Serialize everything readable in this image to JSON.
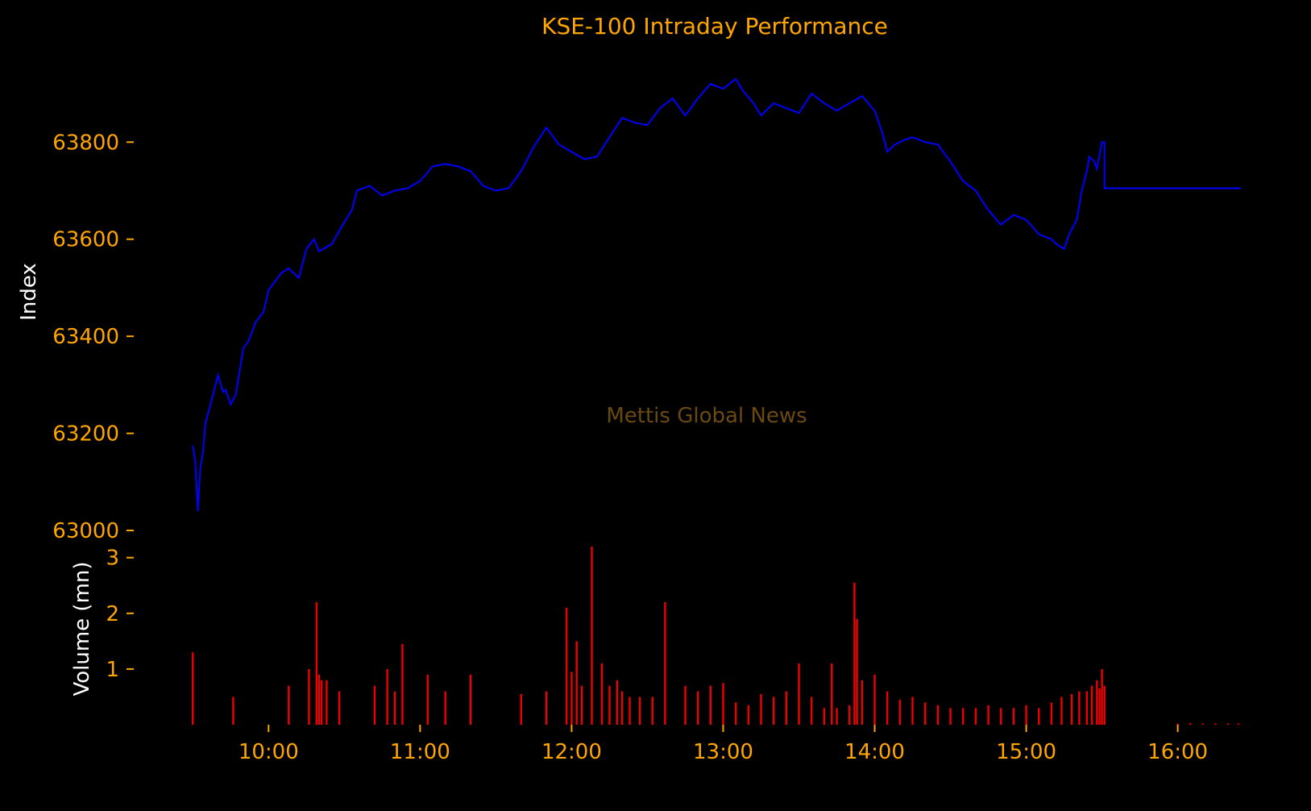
{
  "colors": {
    "background": "#000000",
    "title": "#FFA500",
    "ticks": "#FFA500",
    "axis_label": "#FFFFFF",
    "index_line": "#0000FF",
    "volume_bars": "#EE0000",
    "watermark": "#6B4A12"
  },
  "watermark": "Mettis Global News",
  "chart_data": [
    {
      "type": "line",
      "title": "KSE-100 Intraday Performance",
      "xlabel": "",
      "ylabel": "Index",
      "ylim": [
        63000,
        63950
      ],
      "yticks": [
        63000,
        63200,
        63400,
        63600,
        63800
      ],
      "xlim": [
        "09:28",
        "16:25"
      ],
      "grid": false,
      "series": [
        {
          "x": [
            "09:30",
            "09:31",
            "09:32",
            "09:33",
            "09:34",
            "09:35",
            "09:37",
            "09:39",
            "09:40",
            "09:42",
            "09:43",
            "09:45",
            "09:47",
            "09:50",
            "09:52",
            "09:55",
            "09:58",
            "10:00",
            "10:05",
            "10:08",
            "10:12",
            "10:15",
            "10:18",
            "10:20",
            "10:25",
            "10:30",
            "10:33",
            "10:35",
            "10:40",
            "10:45",
            "10:50",
            "10:55",
            "11:00",
            "11:05",
            "11:10",
            "11:15",
            "11:20",
            "11:25",
            "11:30",
            "11:35",
            "11:40",
            "11:45",
            "11:50",
            "11:55",
            "12:00",
            "12:05",
            "12:10",
            "12:15",
            "12:20",
            "12:25",
            "12:30",
            "12:35",
            "12:40",
            "12:45",
            "12:50",
            "12:55",
            "13:00",
            "13:05",
            "13:08",
            "13:12",
            "13:15",
            "13:20",
            "13:25",
            "13:30",
            "13:35",
            "13:40",
            "13:45",
            "13:50",
            "13:55",
            "14:00",
            "14:03",
            "14:05",
            "14:08",
            "14:12",
            "14:15",
            "14:20",
            "14:25",
            "14:30",
            "14:35",
            "14:40",
            "14:45",
            "14:50",
            "14:55",
            "15:00",
            "15:05",
            "15:10",
            "15:12",
            "15:15",
            "15:17",
            "15:20",
            "15:22",
            "15:24",
            "15:25",
            "15:27",
            "15:28",
            "15:30",
            "15:31",
            "15:31",
            "16:25"
          ],
          "y": [
            63175,
            63140,
            63040,
            63130,
            63160,
            63220,
            63260,
            63300,
            63320,
            63285,
            63290,
            63260,
            63280,
            63375,
            63390,
            63430,
            63450,
            63495,
            63530,
            63540,
            63520,
            63580,
            63600,
            63575,
            63590,
            63635,
            63660,
            63700,
            63710,
            63690,
            63700,
            63705,
            63720,
            63750,
            63755,
            63750,
            63740,
            63710,
            63700,
            63705,
            63740,
            63790,
            63830,
            63795,
            63780,
            63765,
            63770,
            63810,
            63850,
            63840,
            63835,
            63870,
            63890,
            63855,
            63890,
            63920,
            63910,
            63930,
            63905,
            63880,
            63855,
            63880,
            63870,
            63860,
            63900,
            63880,
            63865,
            63880,
            63895,
            63865,
            63820,
            63780,
            63795,
            63805,
            63810,
            63800,
            63795,
            63760,
            63720,
            63700,
            63660,
            63630,
            63650,
            63640,
            63610,
            63600,
            63590,
            63580,
            63610,
            63640,
            63700,
            63740,
            63770,
            63760,
            63745,
            63800,
            63800,
            63705,
            63705
          ]
        }
      ]
    },
    {
      "type": "bar",
      "xlabel": "",
      "ylabel": "Volume (mn)",
      "ylim": [
        0,
        3.3
      ],
      "yticks": [
        1,
        2,
        3
      ],
      "xticks": [
        "10:00",
        "11:00",
        "12:00",
        "13:00",
        "14:00",
        "15:00",
        "16:00"
      ],
      "grid": false,
      "series": [
        {
          "x": [
            "09:30",
            "09:46",
            "10:08",
            "10:16",
            "10:19",
            "10:20",
            "10:21",
            "10:23",
            "10:28",
            "10:42",
            "10:47",
            "10:50",
            "10:53",
            "11:03",
            "11:10",
            "11:20",
            "11:40",
            "11:50",
            "11:58",
            "12:00",
            "12:02",
            "12:04",
            "12:08",
            "12:12",
            "12:15",
            "12:18",
            "12:20",
            "12:23",
            "12:27",
            "12:32",
            "12:37",
            "12:45",
            "12:50",
            "12:55",
            "13:00",
            "13:05",
            "13:10",
            "13:15",
            "13:20",
            "13:25",
            "13:30",
            "13:35",
            "13:40",
            "13:45",
            "13:50",
            "13:55",
            "14:00",
            "14:05",
            "14:10",
            "14:15",
            "14:20",
            "14:25",
            "14:30",
            "14:35",
            "14:40",
            "14:45",
            "14:50",
            "14:55",
            "15:00",
            "15:05",
            "15:10",
            "15:14",
            "15:18",
            "15:21",
            "15:24",
            "15:26",
            "15:28",
            "15:29",
            "15:30",
            "15:31",
            "16:00",
            "16:05",
            "16:10",
            "16:15",
            "16:20",
            "16:24"
          ],
          "y": [
            1.3,
            0.5,
            0.7,
            1.0,
            2.2,
            0.9,
            0.8,
            0.8,
            0.6,
            0.7,
            1.0,
            0.6,
            1.45,
            0.9,
            0.6,
            0.9,
            0.55,
            0.6,
            2.1,
            0.95,
            1.5,
            0.7,
            3.2,
            1.1,
            0.7,
            0.8,
            0.6,
            0.5,
            0.5,
            0.5,
            2.2,
            0.7,
            0.6,
            0.7,
            0.75,
            0.4,
            0.35,
            0.55,
            0.5,
            0.6,
            1.1,
            0.5,
            0.3,
            0.3,
            0.35,
            0.8,
            0.9,
            0.6,
            0.45,
            0.5,
            0.4,
            0.35,
            0.3,
            0.3,
            0.3,
            0.35,
            0.3,
            0.3,
            0.35,
            0.3,
            0.4,
            0.5,
            0.55,
            0.6,
            0.6,
            0.7,
            0.8,
            0.65,
            1.0,
            0.7,
            0.02,
            0.03,
            0.02,
            0.02,
            0.02,
            0.02
          ]
        },
        {
          "x": [
            "13:43",
            "13:52",
            "13:53"
          ],
          "y": [
            1.1,
            2.55,
            1.9
          ]
        }
      ]
    }
  ]
}
